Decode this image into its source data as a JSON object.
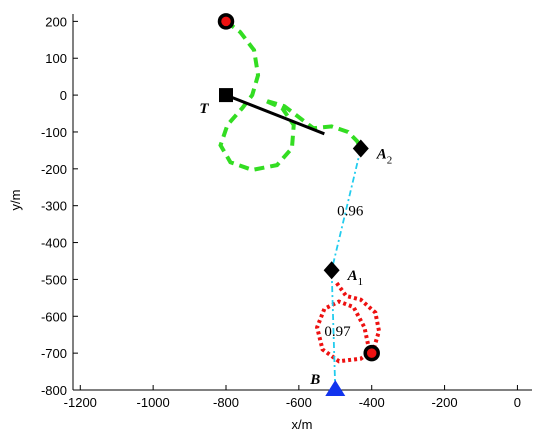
{
  "chart_data": {
    "type": "trajectory",
    "xlabel": "x/m",
    "ylabel": "y/m",
    "xlim": [
      -1220,
      40
    ],
    "ylim": [
      -800,
      220
    ],
    "xticks": [
      -1200,
      -1000,
      -800,
      -600,
      -400,
      -200,
      0
    ],
    "yticks": [
      -800,
      -700,
      -600,
      -500,
      -400,
      -300,
      -200,
      -100,
      0,
      100,
      200
    ],
    "series": [
      {
        "color": "#33dd22",
        "style": "dashed",
        "x": [
          -800,
          -761,
          -723,
          -712,
          -728,
          -755,
          -796,
          -815,
          -788,
          -728,
          -660,
          -619,
          -614,
          -646,
          -695,
          -640,
          -600,
          -560,
          -510,
          -465,
          -440,
          -430
        ],
        "y": [
          200,
          171,
          122,
          54,
          0,
          -35,
          -81,
          -136,
          -182,
          -203,
          -190,
          -144,
          -81,
          -35,
          -14,
          -30,
          -60,
          -90,
          -85,
          -100,
          -125,
          -145
        ]
      },
      {
        "color": "#000000",
        "style": "solid",
        "x": [
          -800,
          -530
        ],
        "y": [
          0,
          -105
        ]
      },
      {
        "color": "#ee1111",
        "style": "dotted",
        "x": [
          -496,
          -470,
          -430,
          -390,
          -380,
          -395,
          -430,
          -490,
          -535,
          -550,
          -530,
          -490,
          -450,
          -420,
          -405
        ],
        "y": [
          -510,
          -545,
          -555,
          -590,
          -640,
          -690,
          -715,
          -722,
          -690,
          -630,
          -580,
          -560,
          -575,
          -630,
          -700
        ]
      },
      {
        "color": "#22ccee",
        "style": "dashdot",
        "x": [
          -500,
          -510,
          -430
        ],
        "y": [
          -800,
          -475,
          -145
        ],
        "segment_labels": [
          0.97,
          0.96
        ]
      }
    ],
    "markers": [
      {
        "shape": "circle",
        "x": -800,
        "y": 200
      },
      {
        "shape": "circle",
        "x": -400,
        "y": -700
      },
      {
        "shape": "square",
        "x": -800,
        "y": 0,
        "label": "T"
      },
      {
        "shape": "diamond",
        "x": -430,
        "y": -145,
        "label": "A",
        "sub": "2"
      },
      {
        "shape": "diamond",
        "x": -510,
        "y": -475,
        "label": "A",
        "sub": "1"
      },
      {
        "shape": "triangle",
        "x": -500,
        "y": -800,
        "label": "B",
        "color": "#1133ee"
      }
    ]
  }
}
